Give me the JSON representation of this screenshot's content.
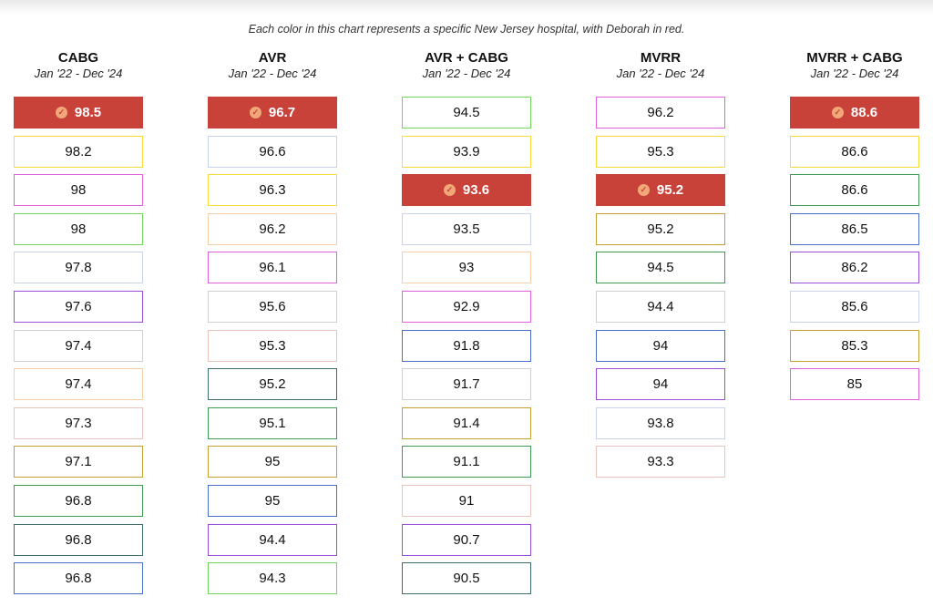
{
  "caption": "Each color in this chart represents a specific New Jersey hospital, with Deborah in red.",
  "highlight_color": "#c9423a",
  "chart_data": [
    {
      "type": "table",
      "title": "CABG",
      "subtitle": "Jan '22 - Dec '24",
      "rows": [
        {
          "value": "98.5",
          "color": "#c9423a",
          "highlight": true
        },
        {
          "value": "98.2",
          "color": "#f5dc3c"
        },
        {
          "value": "98",
          "color": "#e060e0"
        },
        {
          "value": "98",
          "color": "#6ed85a"
        },
        {
          "value": "97.8",
          "color": "#c8d4ee"
        },
        {
          "value": "97.6",
          "color": "#9a4fd6"
        },
        {
          "value": "97.4",
          "color": "#d0d0d0"
        },
        {
          "value": "97.4",
          "color": "#f6cfa6"
        },
        {
          "value": "97.3",
          "color": "#e8c4bc"
        },
        {
          "value": "97.1",
          "color": "#c4a030"
        },
        {
          "value": "96.8",
          "color": "#3f9a52"
        },
        {
          "value": "96.8",
          "color": "#3e6e68"
        },
        {
          "value": "96.8",
          "color": "#4a6fc9"
        }
      ]
    },
    {
      "type": "table",
      "title": "AVR",
      "subtitle": "Jan '22 - Dec '24",
      "rows": [
        {
          "value": "96.7",
          "color": "#c9423a",
          "highlight": true
        },
        {
          "value": "96.6",
          "color": "#c8d4ee"
        },
        {
          "value": "96.3",
          "color": "#f5dc3c"
        },
        {
          "value": "96.2",
          "color": "#f6cfa6"
        },
        {
          "value": "96.1",
          "color": "#e060e0"
        },
        {
          "value": "95.6",
          "color": "#d0d0d0"
        },
        {
          "value": "95.3",
          "color": "#e8c4bc"
        },
        {
          "value": "95.2",
          "color": "#3e6e68"
        },
        {
          "value": "95.1",
          "color": "#3f9a52"
        },
        {
          "value": "95",
          "color": "#c4a030"
        },
        {
          "value": "95",
          "color": "#4a6fc9"
        },
        {
          "value": "94.4",
          "color": "#9a4fd6"
        },
        {
          "value": "94.3",
          "color": "#6ed85a"
        }
      ]
    },
    {
      "type": "table",
      "title": "AVR + CABG",
      "subtitle": "Jan '22 - Dec '24",
      "rows": [
        {
          "value": "94.5",
          "color": "#6ed85a"
        },
        {
          "value": "93.9",
          "color": "#f5dc3c"
        },
        {
          "value": "93.6",
          "color": "#c9423a",
          "highlight": true
        },
        {
          "value": "93.5",
          "color": "#c8d4ee"
        },
        {
          "value": "93",
          "color": "#f6cfa6"
        },
        {
          "value": "92.9",
          "color": "#e060e0"
        },
        {
          "value": "91.8",
          "color": "#4a6fc9"
        },
        {
          "value": "91.7",
          "color": "#d0d0d0"
        },
        {
          "value": "91.4",
          "color": "#c4a030"
        },
        {
          "value": "91.1",
          "color": "#3f9a52"
        },
        {
          "value": "91",
          "color": "#e8c4bc"
        },
        {
          "value": "90.7",
          "color": "#9a4fd6"
        },
        {
          "value": "90.5",
          "color": "#3e6e68"
        }
      ]
    },
    {
      "type": "table",
      "title": "MVRR",
      "subtitle": "Jan '22 - Dec '24",
      "rows": [
        {
          "value": "96.2",
          "color": "#e060e0"
        },
        {
          "value": "95.3",
          "color": "#f5dc3c"
        },
        {
          "value": "95.2",
          "color": "#c9423a",
          "highlight": true
        },
        {
          "value": "95.2",
          "color": "#c4a030"
        },
        {
          "value": "94.5",
          "color": "#3f9a52"
        },
        {
          "value": "94.4",
          "color": "#d0d0d0"
        },
        {
          "value": "94",
          "color": "#4a6fc9"
        },
        {
          "value": "94",
          "color": "#9a4fd6"
        },
        {
          "value": "93.8",
          "color": "#c8d4ee"
        },
        {
          "value": "93.3",
          "color": "#e8c4bc"
        }
      ]
    },
    {
      "type": "table",
      "title": "MVRR + CABG",
      "subtitle": "Jan '22 - Dec '24",
      "rows": [
        {
          "value": "88.6",
          "color": "#c9423a",
          "highlight": true
        },
        {
          "value": "86.6",
          "color": "#f5dc3c"
        },
        {
          "value": "86.6",
          "color": "#3f9a52"
        },
        {
          "value": "86.5",
          "color": "#4a6fc9"
        },
        {
          "value": "86.2",
          "color": "#9a4fd6"
        },
        {
          "value": "85.6",
          "color": "#c8d4ee"
        },
        {
          "value": "85.3",
          "color": "#c4a030"
        },
        {
          "value": "85",
          "color": "#e060e0"
        }
      ]
    }
  ]
}
